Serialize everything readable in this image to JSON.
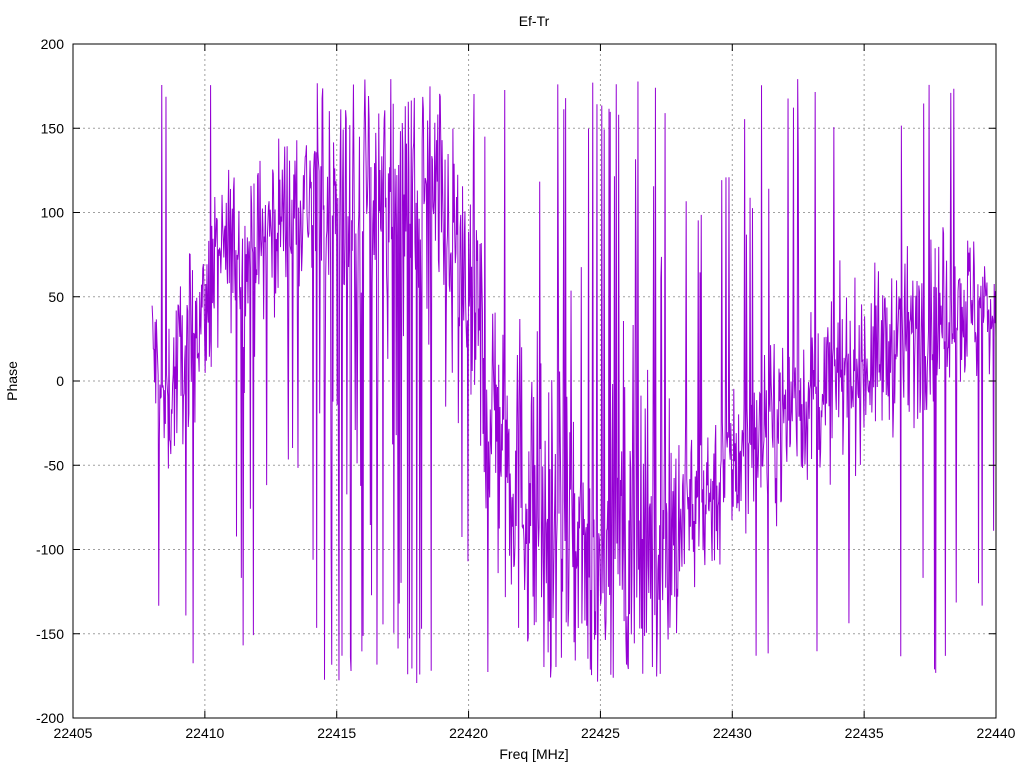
{
  "chart_data": {
    "type": "line",
    "title": "Ef-Tr",
    "xlabel": "Freq [MHz]",
    "ylabel": "Phase",
    "xlim": [
      22405,
      22440
    ],
    "ylim": [
      -200,
      200
    ],
    "xticks": [
      22405,
      22410,
      22415,
      22420,
      22425,
      22430,
      22435,
      22440
    ],
    "yticks": [
      -200,
      -150,
      -100,
      -50,
      0,
      50,
      100,
      150,
      200
    ],
    "grid": true,
    "line_color": "#9400d3",
    "series": [
      {
        "x_start": 22408.0,
        "x_end": 22440.0,
        "trend": [
          [
            22408.0,
            20
          ],
          [
            22408.5,
            -20
          ],
          [
            22409.0,
            10
          ],
          [
            22409.5,
            30
          ],
          [
            22410.0,
            40
          ],
          [
            22410.5,
            70
          ],
          [
            22411.0,
            80
          ],
          [
            22411.5,
            70
          ],
          [
            22412.0,
            80
          ],
          [
            22412.5,
            90
          ],
          [
            22413.0,
            100
          ],
          [
            22414.0,
            110
          ],
          [
            22415.0,
            110
          ],
          [
            22416.0,
            120
          ],
          [
            22417.0,
            125
          ],
          [
            22418.0,
            120
          ],
          [
            22419.0,
            90
          ],
          [
            22420.0,
            40
          ],
          [
            22421.0,
            -20
          ],
          [
            22422.0,
            -60
          ],
          [
            22423.0,
            -90
          ],
          [
            22424.0,
            -110
          ],
          [
            22425.0,
            -115
          ],
          [
            22426.0,
            -110
          ],
          [
            22427.0,
            -100
          ],
          [
            22428.0,
            -85
          ],
          [
            22429.0,
            -70
          ],
          [
            22430.0,
            -50
          ],
          [
            22431.0,
            -35
          ],
          [
            22432.0,
            -20
          ],
          [
            22433.0,
            -10
          ],
          [
            22434.0,
            0
          ],
          [
            22435.0,
            10
          ],
          [
            22436.0,
            20
          ],
          [
            22437.0,
            30
          ],
          [
            22438.0,
            40
          ],
          [
            22439.0,
            45
          ],
          [
            22440.0,
            40
          ]
        ]
      }
    ]
  }
}
